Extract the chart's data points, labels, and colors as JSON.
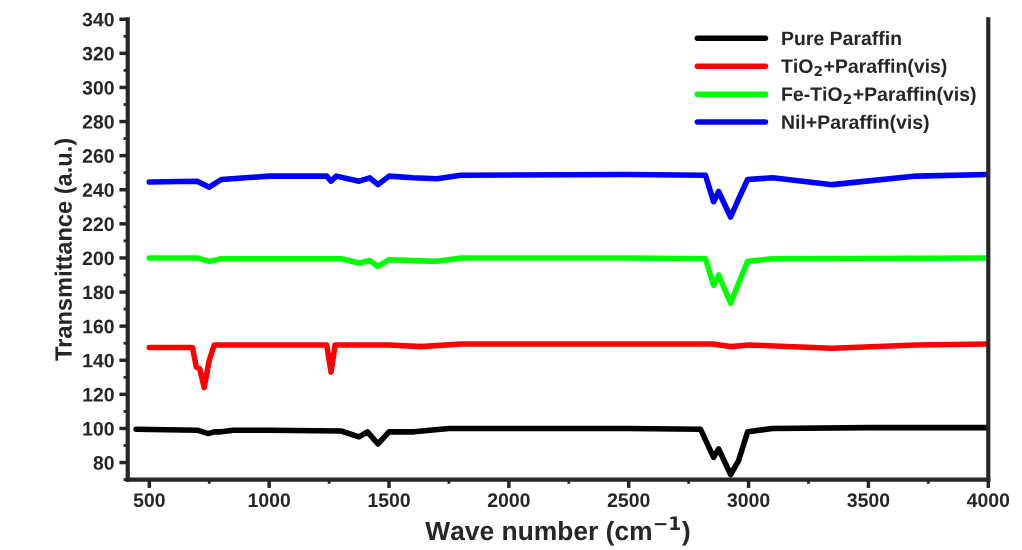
{
  "chart_data": {
    "type": "line",
    "xlabel": "Wave number (cm$^{−1}$)",
    "ylabel": "Transmittance (a.u.)",
    "xlim": [
      410,
      4000
    ],
    "xticks": [
      500,
      1000,
      1500,
      2000,
      2500,
      3000,
      3500,
      4000
    ],
    "ylim": [
      70,
      340
    ],
    "yticks": [
      80,
      100,
      120,
      140,
      160,
      180,
      200,
      220,
      240,
      260,
      280,
      300,
      320,
      340
    ],
    "grid": false,
    "legend": "top right",
    "marker": "none",
    "line_style": "solid",
    "series": [
      {
        "name": "Pure Paraffin",
        "color": "#000000",
        "x": [
          445,
          700,
          746,
          770,
          800,
          850,
          1000,
          1300,
          1375,
          1410,
          1454,
          1500,
          1604,
          1750,
          2000,
          2500,
          2800,
          2854,
          2875,
          2925,
          2958,
          2996,
          3100,
          3500,
          4000
        ],
        "values": [
          99.5,
          99,
          97,
          98,
          98,
          99,
          99,
          98.5,
          95,
          98,
          91,
          98,
          98,
          100,
          100,
          100,
          99.5,
          83,
          88,
          73,
          81,
          98,
          100,
          100.5,
          100.5
        ]
      },
      {
        "name": "TiO$_{2}$+Paraffin(vis)",
        "color": "#ff0000",
        "x": [
          500,
          680,
          696,
          710,
          729,
          750,
          771,
          1000,
          1240,
          1258,
          1275,
          1500,
          1633,
          1800,
          2500,
          2850,
          2925,
          3000,
          3350,
          3700,
          4000
        ],
        "values": [
          147.5,
          147.5,
          136,
          135,
          124,
          140,
          149,
          149,
          149,
          133,
          149,
          149,
          148,
          149.5,
          149.5,
          149.5,
          148,
          149,
          147,
          149,
          149.5
        ]
      },
      {
        "name": "Fe-TiO$_{2}$+Paraffin(vis)",
        "color": "#00ff00",
        "x": [
          500,
          700,
          750,
          800,
          1300,
          1375,
          1420,
          1454,
          1500,
          1700,
          1800,
          2500,
          2820,
          2854,
          2875,
          2925,
          2958,
          2996,
          3100,
          4000
        ],
        "values": [
          200,
          200,
          198,
          199.5,
          199.5,
          197,
          198.5,
          195,
          199,
          198,
          200,
          200,
          199.5,
          184,
          190,
          173.5,
          185,
          198,
          199.5,
          200
        ]
      },
      {
        "name": "Nil+Paraffin(vis)",
        "color": "#0000ff",
        "x": [
          500,
          700,
          750,
          800,
          1000,
          1240,
          1258,
          1280,
          1375,
          1420,
          1454,
          1500,
          1600,
          1700,
          1800,
          2500,
          2820,
          2854,
          2875,
          2925,
          2958,
          2996,
          3100,
          3350,
          3700,
          4000
        ],
        "values": [
          244.5,
          245,
          241.5,
          246,
          248,
          248,
          245,
          248,
          245,
          247,
          243,
          248,
          247,
          246.5,
          248.5,
          249,
          248.5,
          233,
          239,
          224,
          234.5,
          246,
          247,
          243,
          248,
          249
        ]
      }
    ]
  }
}
